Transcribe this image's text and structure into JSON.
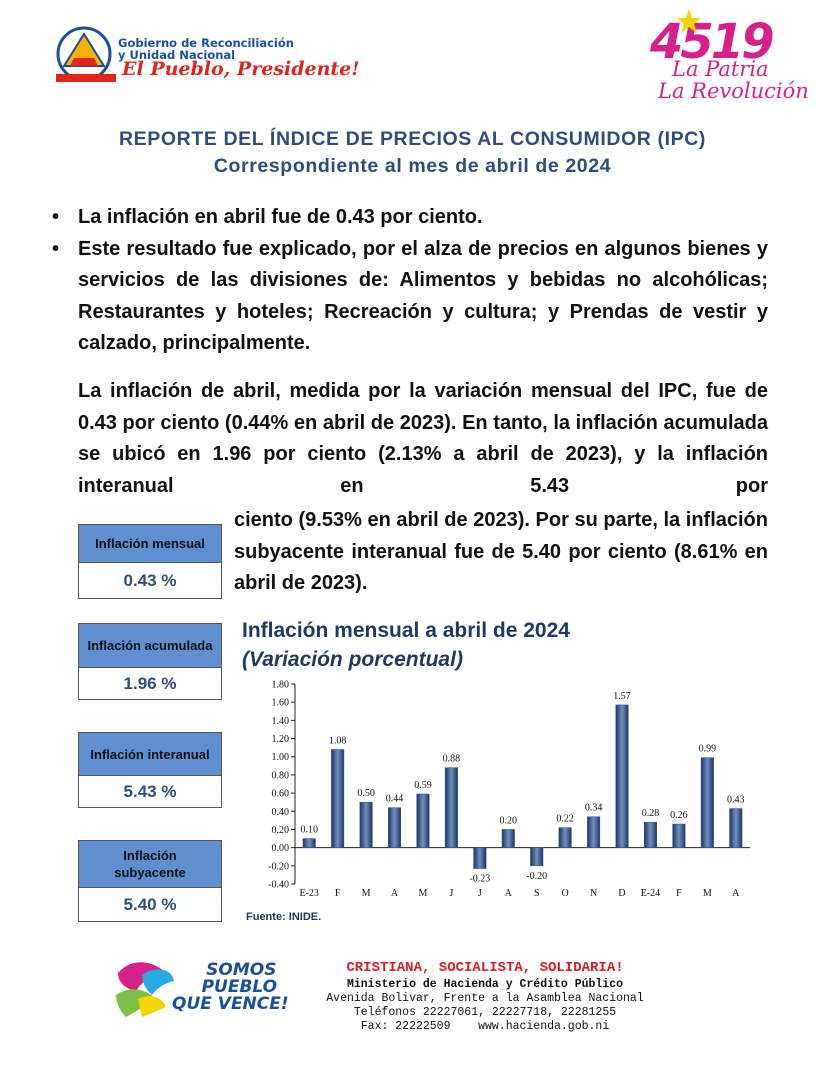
{
  "header": {
    "logo_left": {
      "line1": "Gobierno de Reconciliación",
      "line2": "y Unidad Nacional",
      "slogan": "El Pueblo, Presidente!"
    },
    "logo_right": {
      "number": "4519",
      "line1": "La Patria",
      "line2": "La Revolución"
    }
  },
  "title": {
    "line1": "REPORTE DEL ÍNDICE DE PRECIOS AL CONSUMIDOR (IPC)",
    "line2": "Correspondiente al mes de abril de 2024"
  },
  "bullets": [
    "La inflación en abril fue de 0.43 por ciento.",
    "Este resultado fue explicado, por el alza de precios en algunos bienes y servicios de las divisiones de: Alimentos y bebidas no alcohólicas; Restaurantes y hoteles; Recreación y cultura; y Prendas de vestir y calzado, principalmente."
  ],
  "paragraph": [
    "La inflación de abril, medida por la variación mensual del IPC, fue de 0.43 por ciento (0.44% en abril de 2023). En tanto, la inflación acumulada se ubicó en 1.96 por ciento (2.13% a abril de 2023), y la inflación interanual en 5.43 por",
    "ciento (9.53% en abril de 2023). Por su parte, la inflación subyacente interanual fue de 5.40 por ciento (8.61% en abril de 2023)."
  ],
  "boxes": [
    {
      "label": "Inflación mensual",
      "value": "0.43 %"
    },
    {
      "label": "Inflación acumulada",
      "value": "1.96 %"
    },
    {
      "label": "Inflación interanual",
      "value": "5.43 %"
    },
    {
      "label": "Inflación subyacente",
      "value": "5.40 %"
    }
  ],
  "chart_data": {
    "type": "bar",
    "title": "Inflación mensual a abril de 2024",
    "subtitle": "(Variación porcentual)",
    "categories": [
      "E-23",
      "F",
      "M",
      "A",
      "M",
      "J",
      "J",
      "A",
      "S",
      "O",
      "N",
      "D",
      "E-24",
      "F",
      "M",
      "A"
    ],
    "values": [
      0.1,
      1.08,
      0.5,
      0.44,
      0.59,
      0.88,
      -0.23,
      0.2,
      -0.2,
      0.22,
      0.34,
      1.57,
      0.28,
      0.26,
      0.99,
      0.43
    ],
    "value_labels": [
      "0.10",
      "1.08",
      "0.50",
      "0.44",
      "0.59",
      "0.88",
      "-0.23",
      "0.20",
      "-0.20",
      "0.22",
      "0.34",
      "1.57",
      "0.28",
      "0.26",
      "0.99",
      "0.43"
    ],
    "color": "#34528a",
    "ylim": [
      -0.4,
      1.8
    ],
    "yticks": [
      {
        "value": -0.4,
        "label": "-0.40"
      },
      {
        "value": -0.2,
        "label": "-0.20"
      },
      {
        "value": 0,
        "label": "0.00"
      },
      {
        "value": 0.2,
        "label": "0.20"
      },
      {
        "value": 0.4,
        "label": "0.40"
      },
      {
        "value": 0.6,
        "label": "0.60"
      },
      {
        "value": 0.8,
        "label": "0.80"
      },
      {
        "value": 1.0,
        "label": "1.00"
      },
      {
        "value": 1.2,
        "label": "1.20"
      },
      {
        "value": 1.4,
        "label": "1.40"
      },
      {
        "value": 1.6,
        "label": "1.60"
      },
      {
        "value": 1.8,
        "label": "1.80"
      }
    ],
    "grid": false
  },
  "source": "Fuente: INIDE.",
  "footer": {
    "motto": "CRISTIANA, SOCIALISTA, SOLIDARIA!",
    "ministry": "Ministerio de Hacienda y Crédito Público",
    "address": "Avenida Bolivar, Frente a la Asamblea Nacional",
    "phones": "Teléfonos 22227061, 22227718, 22281255",
    "fax": "Fax: 22222509",
    "web": "www.hacienda.gob.ni",
    "logo": {
      "line1": "SOMOS",
      "line2": "PUEBLO",
      "line3": "QUE VENCE!"
    }
  }
}
